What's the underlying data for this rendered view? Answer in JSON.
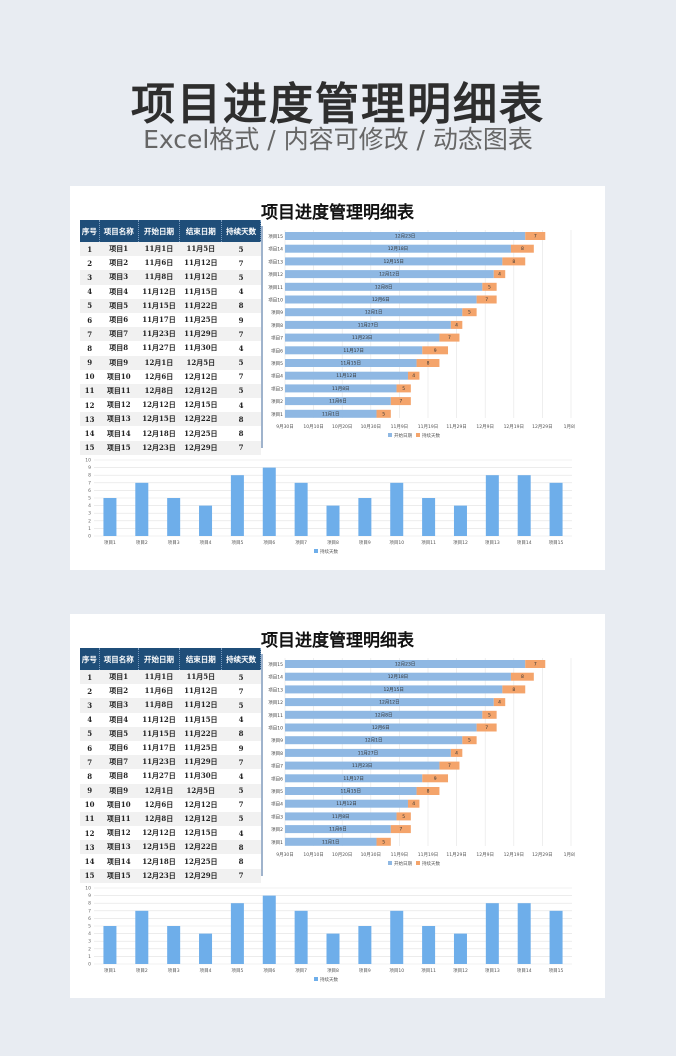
{
  "header": {
    "title": "项目进度管理明细表",
    "subtitle": "Excel格式 / 内容可修改 / 动态图表"
  },
  "sheet": {
    "title": "项目进度管理明细表",
    "columns": [
      "序号",
      "项目名称",
      "开始日期",
      "结束日期",
      "持续天数"
    ],
    "rows": [
      [
        "1",
        "项目1",
        "11月1日",
        "11月5日",
        "5"
      ],
      [
        "2",
        "项目2",
        "11月6日",
        "11月12日",
        "7"
      ],
      [
        "3",
        "项目3",
        "11月8日",
        "11月12日",
        "5"
      ],
      [
        "4",
        "项目4",
        "11月12日",
        "11月15日",
        "4"
      ],
      [
        "5",
        "项目5",
        "11月15日",
        "11月22日",
        "8"
      ],
      [
        "6",
        "项目6",
        "11月17日",
        "11月25日",
        "9"
      ],
      [
        "7",
        "项目7",
        "11月23日",
        "11月29日",
        "7"
      ],
      [
        "8",
        "项目8",
        "11月27日",
        "11月30日",
        "4"
      ],
      [
        "9",
        "项目9",
        "12月1日",
        "12月5日",
        "5"
      ],
      [
        "10",
        "项目10",
        "12月6日",
        "12月12日",
        "7"
      ],
      [
        "11",
        "项目11",
        "12月8日",
        "12月12日",
        "5"
      ],
      [
        "12",
        "项目12",
        "12月12日",
        "12月15日",
        "4"
      ],
      [
        "13",
        "项目13",
        "12月15日",
        "12月22日",
        "8"
      ],
      [
        "14",
        "项目14",
        "12月18日",
        "12月25日",
        "8"
      ],
      [
        "15",
        "项目15",
        "12月23日",
        "12月29日",
        "7"
      ]
    ]
  },
  "colors": {
    "header": "#1f4e79",
    "start": "#8fb8e3",
    "duration": "#f4a46b",
    "column": "#6eaeea"
  },
  "chart_data": [
    {
      "type": "bar",
      "orientation": "horizontal-stacked",
      "categories": [
        "项目1",
        "项目2",
        "项目3",
        "项目4",
        "项目5",
        "项目6",
        "项目7",
        "项目8",
        "项目9",
        "项目10",
        "项目11",
        "项目12",
        "项目13",
        "项目14",
        "项目15"
      ],
      "series": [
        {
          "name": "开始日期",
          "values": [
            "11月1日",
            "11月6日",
            "11月8日",
            "11月12日",
            "11月15日",
            "11月17日",
            "11月23日",
            "11月27日",
            "12月1日",
            "12月6日",
            "12月8日",
            "12月12日",
            "12月15日",
            "12月18日",
            "12月23日"
          ]
        },
        {
          "name": "持续天数",
          "values": [
            5,
            7,
            5,
            4,
            8,
            9,
            7,
            4,
            5,
            7,
            5,
            4,
            8,
            8,
            7
          ]
        }
      ],
      "xticks": [
        "9月30日",
        "10月10日",
        "10月20日",
        "10月30日",
        "11月9日",
        "11月19日",
        "11月29日",
        "12月9日",
        "12月19日",
        "12月29日",
        "1月8日"
      ],
      "xlim": [
        "9月30日",
        "1月8日"
      ],
      "legend": "bottom"
    },
    {
      "type": "bar",
      "categories": [
        "项目1",
        "项目2",
        "项目3",
        "项目4",
        "项目5",
        "项目6",
        "项目7",
        "项目8",
        "项目9",
        "项目10",
        "项目11",
        "项目12",
        "项目13",
        "项目14",
        "项目15"
      ],
      "values": [
        5,
        7,
        5,
        4,
        8,
        9,
        7,
        4,
        5,
        7,
        5,
        4,
        8,
        8,
        7
      ],
      "series_name": "持续天数",
      "ylim": [
        0,
        10
      ],
      "yticks": [
        "0",
        "1",
        "2",
        "3",
        "4",
        "5",
        "6",
        "7",
        "8",
        "9",
        "10"
      ],
      "legend": "bottom",
      "grid": true
    }
  ]
}
